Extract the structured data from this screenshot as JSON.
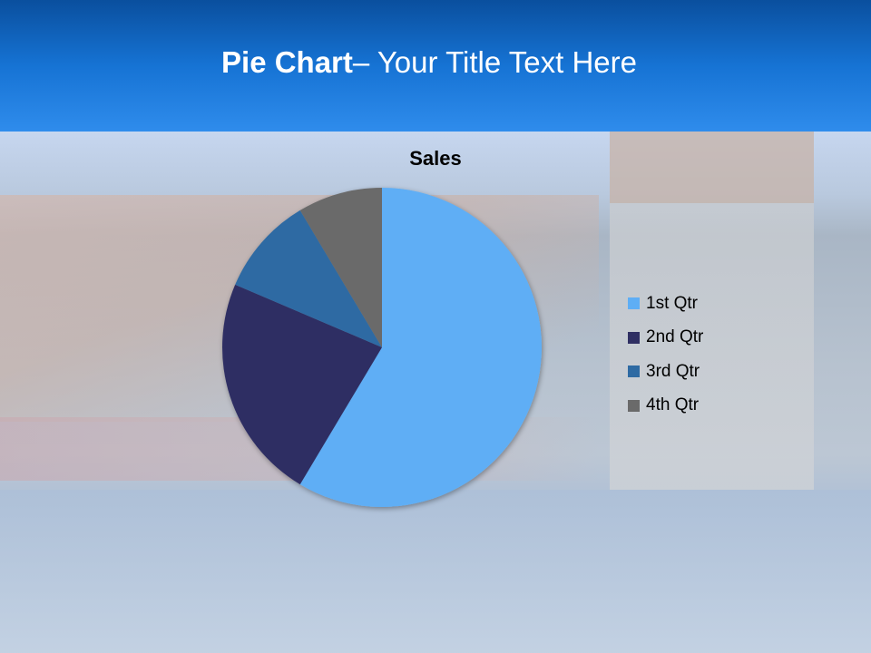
{
  "slide": {
    "title_bold": "Pie Chart",
    "title_rest": "– Your Title Text Here",
    "header_color": "#1673d4"
  },
  "chart_data": {
    "type": "pie",
    "title": "Sales",
    "categories": [
      "1st Qtr",
      "2nd Qtr",
      "3rd Qtr",
      "4th Qtr"
    ],
    "values": [
      8.2,
      3.2,
      1.4,
      1.2
    ],
    "colors": [
      "#5eaef5",
      "#2f2f63",
      "#2e6aa3",
      "#6a6a6a"
    ],
    "start_angle": 0,
    "direction": "clockwise",
    "legend_position": "right"
  }
}
